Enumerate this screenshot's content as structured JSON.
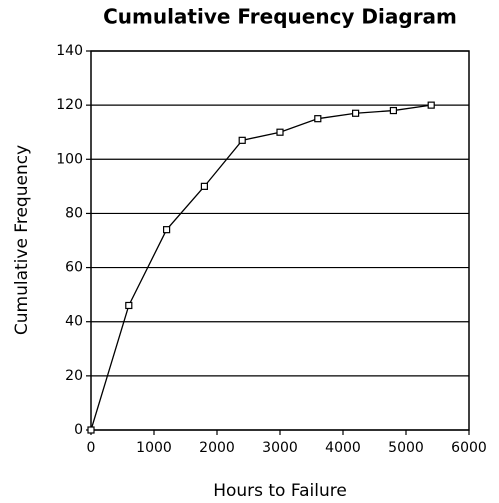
{
  "chart_data": {
    "type": "line",
    "title": "Cumulative Frequency Diagram",
    "xlabel": "Hours to Failure",
    "ylabel": "Cumulative Frequency",
    "x": [
      0,
      600,
      1200,
      1800,
      2400,
      3000,
      3600,
      4200,
      4800,
      5400
    ],
    "series": [
      {
        "name": "Cumulative Frequency",
        "color": "#000000",
        "values": [
          0,
          46,
          74,
          90,
          107,
          110,
          115,
          117,
          118,
          120
        ]
      }
    ],
    "xlim": [
      0,
      6000
    ],
    "xticks": [
      0,
      1000,
      2000,
      3000,
      4000,
      5000,
      6000
    ],
    "ylim": [
      0,
      140
    ],
    "yticks": [
      0,
      20,
      40,
      60,
      80,
      100,
      120,
      140
    ],
    "grid": true,
    "marker": "square"
  }
}
